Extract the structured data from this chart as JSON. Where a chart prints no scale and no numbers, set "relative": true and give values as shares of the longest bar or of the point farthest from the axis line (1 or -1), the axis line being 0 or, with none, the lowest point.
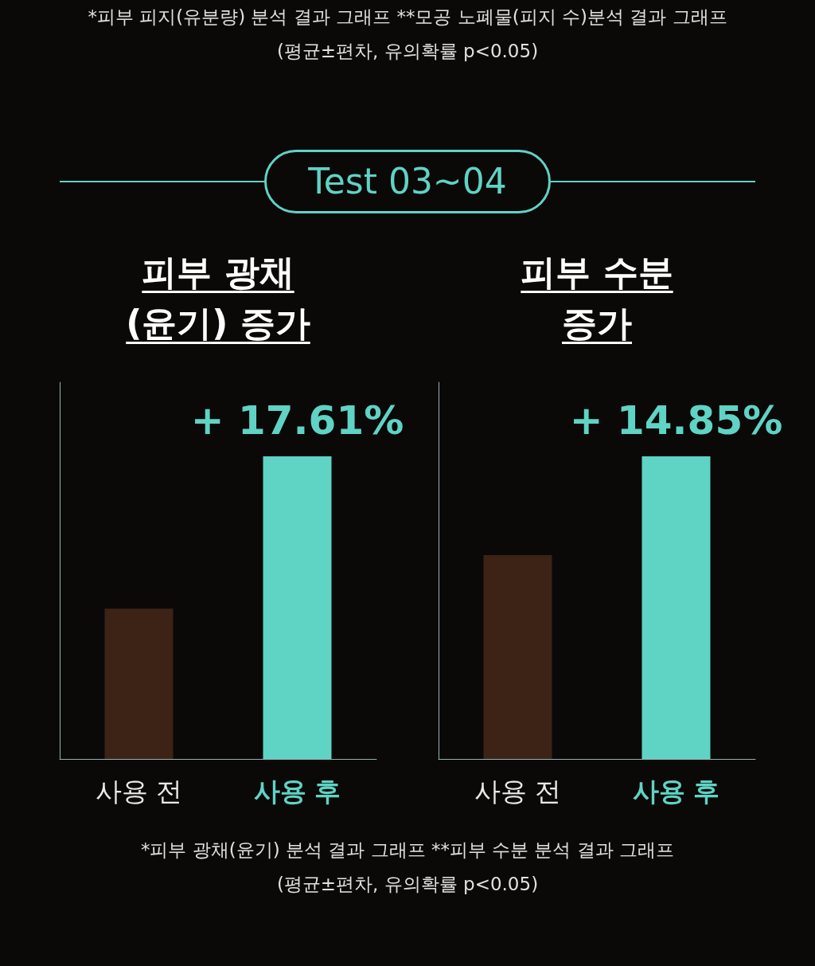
{
  "chart_data": [
    {
      "type": "other",
      "title": "Test 03~04",
      "annotations": [
        "*피부 피지(유분량) 분석 결과 그래프 **모공 노폐물(피지 수)분석 결과 그래프",
        "(평균±편차, 유의확률 p<0.05)"
      ]
    },
    {
      "type": "bar",
      "title": "피부 광채\n(윤기) 증가",
      "categories": [
        "사용 전",
        "사용 후"
      ],
      "values": [
        0.497,
        1
      ],
      "colors": [
        "#3d2216",
        "#5fd3c4"
      ],
      "relative": true,
      "annotations": [
        {
          "text": "+ 17.61%",
          "x": "사용 후",
          "y": 1
        }
      ]
    },
    {
      "type": "bar",
      "title": "피부 수분\n증가",
      "categories": [
        "사용 전",
        "사용 후"
      ],
      "values": [
        0.674,
        1
      ],
      "colors": [
        "#3d2216",
        "#5fd3c4"
      ],
      "relative": true,
      "annotations": [
        {
          "text": "+ 14.85%",
          "x": "사용 후",
          "y": 1
        }
      ]
    },
    {
      "type": "other",
      "annotations": [
        "*피부 광채(윤기) 분석 결과 그래프 **피부 수분 분석 결과 그래프",
        "(평균±편차, 유의확률 p<0.05)"
      ]
    }
  ]
}
